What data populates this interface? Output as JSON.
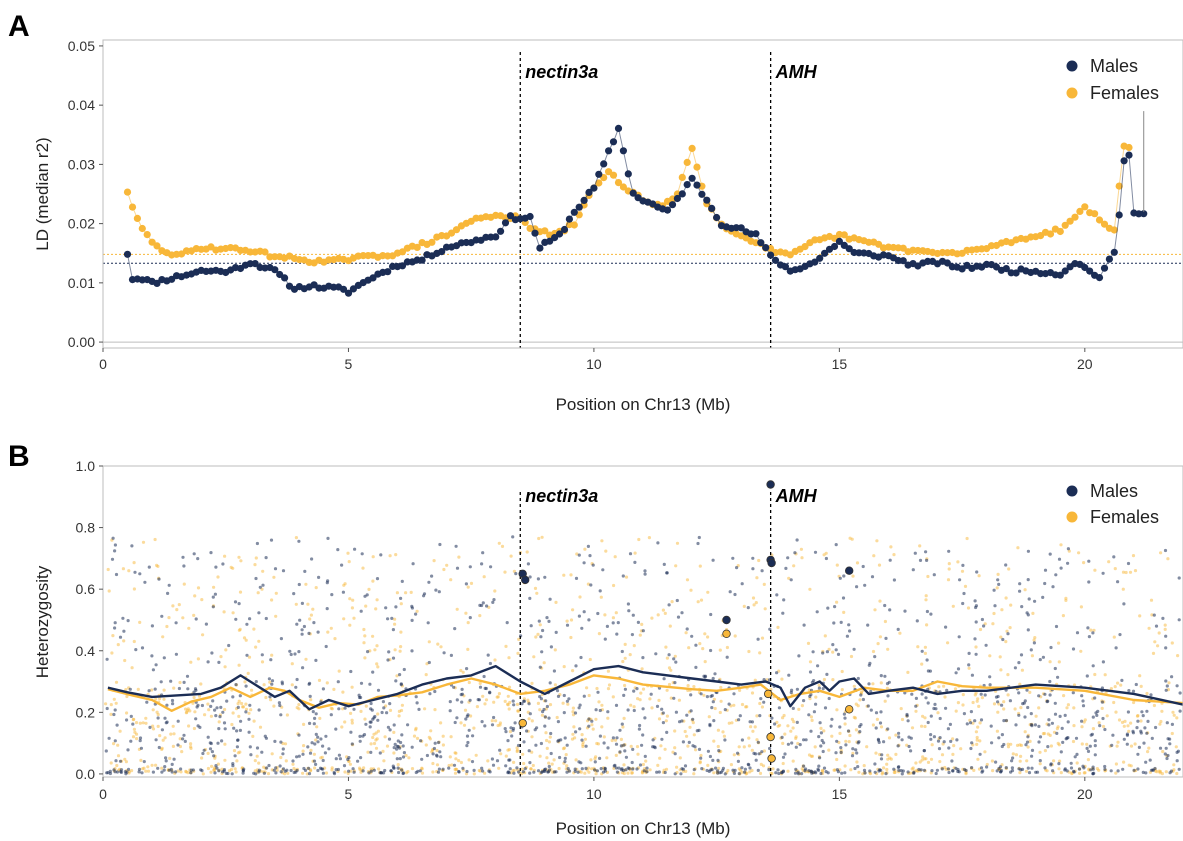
{
  "colors": {
    "males": "#1b2d55",
    "females": "#f8b739",
    "markers": "#000000"
  },
  "chart_data": [
    {
      "type": "line",
      "panel_label": "A",
      "xlabel": "Position on Chr13 (Mb)",
      "ylabel": "LD (median r2)",
      "xlim": [
        0,
        22
      ],
      "ylim": [
        -0.001,
        0.051
      ],
      "x_ticks": [
        0,
        5,
        10,
        15,
        20
      ],
      "y_ticks": [
        0.0,
        0.01,
        0.02,
        0.03,
        0.04,
        0.05
      ],
      "y_tick_labels": [
        "0.00",
        "0.01",
        "0.02",
        "0.03",
        "0.04",
        "0.05"
      ],
      "grid": false,
      "legend_position": "top-right",
      "annotations": [
        {
          "label": "nectin3a",
          "x": 8.5
        },
        {
          "label": "AMH",
          "x": 13.6
        }
      ],
      "hlines": [
        {
          "series": "Males",
          "y": 0.0133
        },
        {
          "series": "Females",
          "y": 0.0148
        }
      ],
      "series": [
        {
          "name": "Males",
          "knots": [
            [
              0.5,
              0.015
            ],
            [
              0.6,
              0.0107
            ],
            [
              0.8,
              0.0108
            ],
            [
              1.0,
              0.01
            ],
            [
              1.5,
              0.011
            ],
            [
              2.0,
              0.012
            ],
            [
              2.6,
              0.012
            ],
            [
              3.0,
              0.0135
            ],
            [
              3.5,
              0.012
            ],
            [
              3.9,
              0.009
            ],
            [
              4.2,
              0.0095
            ],
            [
              4.8,
              0.009
            ],
            [
              5.0,
              0.0085
            ],
            [
              5.5,
              0.011
            ],
            [
              6.0,
              0.013
            ],
            [
              6.5,
              0.014
            ],
            [
              7.0,
              0.016
            ],
            [
              7.5,
              0.017
            ],
            [
              8.0,
              0.018
            ],
            [
              8.3,
              0.021
            ],
            [
              8.7,
              0.021
            ],
            [
              8.9,
              0.016
            ],
            [
              9.3,
              0.018
            ],
            [
              9.6,
              0.022
            ],
            [
              10.0,
              0.026
            ],
            [
              10.3,
              0.032
            ],
            [
              10.5,
              0.036
            ],
            [
              10.8,
              0.025
            ],
            [
              11.0,
              0.024
            ],
            [
              11.5,
              0.022
            ],
            [
              12.0,
              0.0275
            ],
            [
              12.3,
              0.024
            ],
            [
              12.6,
              0.02
            ],
            [
              13.0,
              0.019
            ],
            [
              13.3,
              0.018
            ],
            [
              13.6,
              0.0145
            ],
            [
              14.0,
              0.012
            ],
            [
              14.5,
              0.0135
            ],
            [
              15.0,
              0.017
            ],
            [
              15.3,
              0.015
            ],
            [
              16.0,
              0.0145
            ],
            [
              16.5,
              0.013
            ],
            [
              17.0,
              0.0135
            ],
            [
              17.5,
              0.0125
            ],
            [
              18.0,
              0.013
            ],
            [
              18.5,
              0.012
            ],
            [
              19.0,
              0.012
            ],
            [
              19.5,
              0.0115
            ],
            [
              19.8,
              0.0135
            ],
            [
              20.0,
              0.0125
            ],
            [
              20.3,
              0.011
            ],
            [
              20.6,
              0.015
            ],
            [
              20.75,
              0.025
            ],
            [
              20.85,
              0.036
            ],
            [
              21.0,
              0.022
            ],
            [
              21.2,
              0.022
            ]
          ]
        },
        {
          "name": "Females",
          "knots": [
            [
              0.5,
              0.0255
            ],
            [
              0.6,
              0.0225
            ],
            [
              0.8,
              0.019
            ],
            [
              1.1,
              0.016
            ],
            [
              1.5,
              0.0145
            ],
            [
              2.0,
              0.016
            ],
            [
              3.0,
              0.0155
            ],
            [
              3.5,
              0.0145
            ],
            [
              4.0,
              0.014
            ],
            [
              4.5,
              0.0135
            ],
            [
              5.0,
              0.014
            ],
            [
              6.0,
              0.015
            ],
            [
              6.5,
              0.0165
            ],
            [
              7.0,
              0.018
            ],
            [
              7.5,
              0.0205
            ],
            [
              8.0,
              0.0215
            ],
            [
              8.4,
              0.021
            ],
            [
              8.8,
              0.019
            ],
            [
              9.2,
              0.018
            ],
            [
              9.6,
              0.02
            ],
            [
              10.0,
              0.026
            ],
            [
              10.3,
              0.029
            ],
            [
              10.6,
              0.026
            ],
            [
              11.0,
              0.024
            ],
            [
              11.4,
              0.023
            ],
            [
              11.7,
              0.025
            ],
            [
              12.0,
              0.033
            ],
            [
              12.3,
              0.0235
            ],
            [
              12.7,
              0.019
            ],
            [
              13.3,
              0.017
            ],
            [
              13.6,
              0.0155
            ],
            [
              14.0,
              0.0145
            ],
            [
              14.5,
              0.017
            ],
            [
              15.0,
              0.018
            ],
            [
              16.0,
              0.016
            ],
            [
              16.5,
              0.0155
            ],
            [
              17.0,
              0.015
            ],
            [
              17.5,
              0.015
            ],
            [
              18.0,
              0.016
            ],
            [
              18.5,
              0.017
            ],
            [
              19.0,
              0.018
            ],
            [
              19.5,
              0.019
            ],
            [
              19.8,
              0.021
            ],
            [
              20.0,
              0.023
            ],
            [
              20.3,
              0.0205
            ],
            [
              20.6,
              0.019
            ],
            [
              20.8,
              0.033
            ],
            [
              20.95,
              0.033
            ]
          ]
        }
      ]
    },
    {
      "type": "scatter",
      "panel_label": "B",
      "xlabel": "Position on Chr13 (Mb)",
      "ylabel": "Heterozygosity",
      "xlim": [
        0,
        22
      ],
      "ylim": [
        -0.01,
        1.0
      ],
      "x_ticks": [
        0,
        5,
        10,
        15,
        20
      ],
      "y_ticks": [
        0.0,
        0.2,
        0.4,
        0.6,
        0.8,
        1.0
      ],
      "y_tick_labels": [
        "0.0",
        "0.2",
        "0.4",
        "0.6",
        "0.8",
        "1.0"
      ],
      "grid": false,
      "legend_position": "top-right",
      "annotations": [
        {
          "label": "nectin3a",
          "x": 8.5
        },
        {
          "label": "AMH",
          "x": 13.6
        }
      ],
      "highlighted_points": [
        {
          "series": "Males",
          "x": 8.55,
          "y": 0.65
        },
        {
          "series": "Males",
          "x": 8.6,
          "y": 0.63
        },
        {
          "series": "Males",
          "x": 12.7,
          "y": 0.5
        },
        {
          "series": "Males",
          "x": 13.6,
          "y": 0.94
        },
        {
          "series": "Males",
          "x": 13.6,
          "y": 0.695
        },
        {
          "series": "Males",
          "x": 13.62,
          "y": 0.685
        },
        {
          "series": "Males",
          "x": 15.2,
          "y": 0.66
        },
        {
          "series": "Females",
          "x": 8.55,
          "y": 0.165
        },
        {
          "series": "Females",
          "x": 12.7,
          "y": 0.455
        },
        {
          "series": "Females",
          "x": 13.55,
          "y": 0.26
        },
        {
          "series": "Females",
          "x": 13.6,
          "y": 0.12
        },
        {
          "series": "Females",
          "x": 13.62,
          "y": 0.05
        },
        {
          "series": "Females",
          "x": 15.2,
          "y": 0.21
        }
      ],
      "series": [
        {
          "name": "Males",
          "smooth": [
            [
              0.1,
              0.28
            ],
            [
              0.5,
              0.265
            ],
            [
              1.0,
              0.25
            ],
            [
              1.5,
              0.255
            ],
            [
              2.0,
              0.26
            ],
            [
              2.4,
              0.28
            ],
            [
              2.8,
              0.32
            ],
            [
              3.2,
              0.28
            ],
            [
              3.5,
              0.25
            ],
            [
              3.8,
              0.27
            ],
            [
              4.2,
              0.21
            ],
            [
              4.6,
              0.24
            ],
            [
              5.0,
              0.22
            ],
            [
              5.5,
              0.24
            ],
            [
              6.0,
              0.26
            ],
            [
              6.5,
              0.29
            ],
            [
              7.0,
              0.31
            ],
            [
              7.5,
              0.32
            ],
            [
              8.0,
              0.35
            ],
            [
              8.5,
              0.3
            ],
            [
              9.0,
              0.26
            ],
            [
              9.5,
              0.3
            ],
            [
              10.0,
              0.34
            ],
            [
              10.5,
              0.35
            ],
            [
              11.0,
              0.33
            ],
            [
              12.0,
              0.31
            ],
            [
              12.5,
              0.3
            ],
            [
              13.0,
              0.29
            ],
            [
              13.5,
              0.3
            ],
            [
              13.8,
              0.28
            ],
            [
              14.0,
              0.22
            ],
            [
              14.3,
              0.28
            ],
            [
              14.6,
              0.3
            ],
            [
              14.8,
              0.27
            ],
            [
              15.0,
              0.3
            ],
            [
              15.3,
              0.31
            ],
            [
              15.6,
              0.26
            ],
            [
              16.0,
              0.27
            ],
            [
              16.5,
              0.28
            ],
            [
              17.0,
              0.26
            ],
            [
              17.5,
              0.27
            ],
            [
              18.0,
              0.27
            ],
            [
              19.0,
              0.29
            ],
            [
              20.0,
              0.28
            ],
            [
              21.0,
              0.26
            ],
            [
              22.0,
              0.225
            ]
          ]
        },
        {
          "name": "Females",
          "smooth": [
            [
              0.1,
              0.275
            ],
            [
              0.6,
              0.255
            ],
            [
              1.0,
              0.24
            ],
            [
              1.4,
              0.205
            ],
            [
              1.8,
              0.235
            ],
            [
              2.2,
              0.25
            ],
            [
              2.6,
              0.28
            ],
            [
              3.0,
              0.25
            ],
            [
              3.4,
              0.28
            ],
            [
              3.7,
              0.27
            ],
            [
              4.0,
              0.24
            ],
            [
              4.4,
              0.215
            ],
            [
              4.8,
              0.23
            ],
            [
              5.2,
              0.225
            ],
            [
              5.6,
              0.25
            ],
            [
              6.0,
              0.255
            ],
            [
              6.5,
              0.265
            ],
            [
              7.0,
              0.29
            ],
            [
              7.5,
              0.31
            ],
            [
              8.0,
              0.29
            ],
            [
              8.5,
              0.26
            ],
            [
              9.0,
              0.27
            ],
            [
              9.5,
              0.29
            ],
            [
              10.0,
              0.32
            ],
            [
              10.5,
              0.31
            ],
            [
              11.0,
              0.29
            ],
            [
              12.0,
              0.275
            ],
            [
              12.5,
              0.27
            ],
            [
              13.0,
              0.28
            ],
            [
              13.4,
              0.29
            ],
            [
              13.8,
              0.24
            ],
            [
              14.2,
              0.26
            ],
            [
              14.6,
              0.27
            ],
            [
              15.0,
              0.25
            ],
            [
              15.5,
              0.28
            ],
            [
              16.0,
              0.27
            ],
            [
              16.5,
              0.27
            ],
            [
              17.0,
              0.3
            ],
            [
              17.5,
              0.285
            ],
            [
              18.0,
              0.28
            ],
            [
              19.0,
              0.28
            ],
            [
              20.0,
              0.27
            ],
            [
              21.0,
              0.24
            ],
            [
              22.0,
              0.23
            ]
          ]
        }
      ]
    }
  ]
}
